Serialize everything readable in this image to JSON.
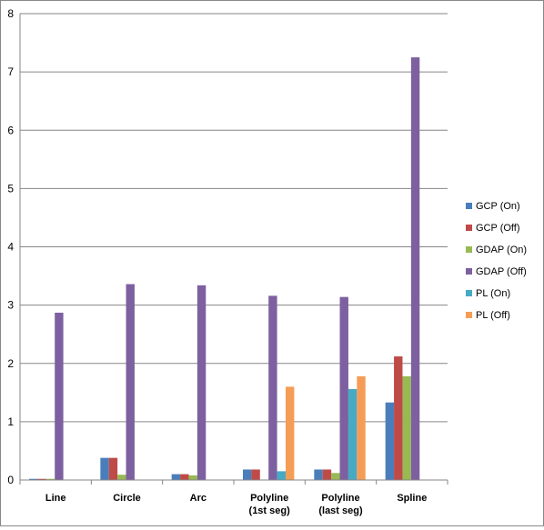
{
  "chart_data": {
    "type": "bar",
    "categories": [
      [
        "Line"
      ],
      [
        "Circle"
      ],
      [
        "Arc"
      ],
      [
        "Polyline",
        "(1st seg)"
      ],
      [
        "Polyline",
        "(last seg)"
      ],
      [
        "Spline"
      ]
    ],
    "series": [
      {
        "name": "GCP (On)",
        "color": "#4a7ebb",
        "values": [
          0.02,
          0.38,
          0.1,
          0.18,
          0.18,
          1.33
        ]
      },
      {
        "name": "GCP (Off)",
        "color": "#be4b48",
        "values": [
          0.02,
          0.38,
          0.1,
          0.18,
          0.18,
          2.12
        ]
      },
      {
        "name": "GDAP (On)",
        "color": "#98b954",
        "values": [
          0.02,
          0.09,
          0.08,
          0.0,
          0.12,
          1.78
        ]
      },
      {
        "name": "GDAP (Off)",
        "color": "#7d60a0",
        "values": [
          2.87,
          3.36,
          3.34,
          3.16,
          3.14,
          7.25
        ]
      },
      {
        "name": "PL (On)",
        "color": "#46aac5",
        "values": [
          0.0,
          0.0,
          0.0,
          0.15,
          1.56,
          0.0
        ]
      },
      {
        "name": "PL (Off)",
        "color": "#f59d56",
        "values": [
          0.0,
          0.0,
          0.0,
          1.6,
          1.78,
          0.0
        ]
      }
    ],
    "ylim": [
      0,
      8
    ],
    "yticks": [
      "0",
      "1",
      "2",
      "3",
      "4",
      "5",
      "6",
      "7",
      "8"
    ],
    "grid": true,
    "legend_position": "right"
  }
}
